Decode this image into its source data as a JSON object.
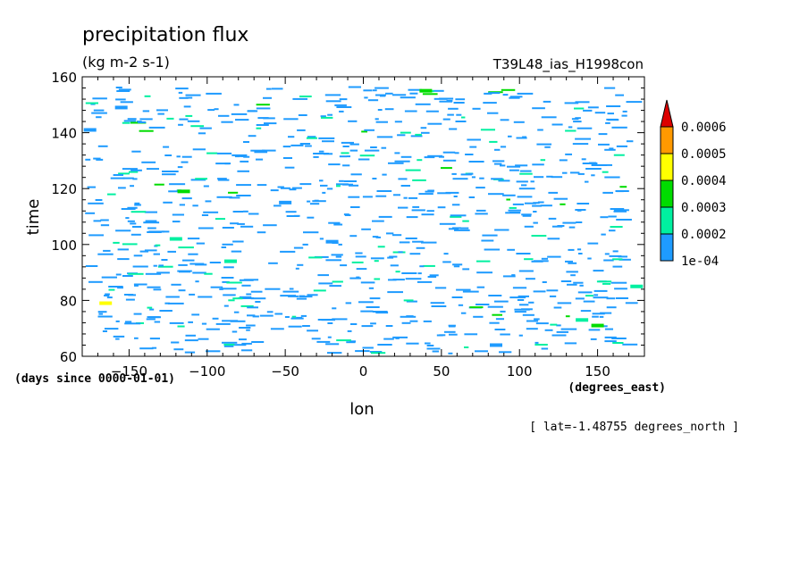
{
  "chart_data": {
    "type": "heatmap",
    "title": "precipitation flux",
    "units": "(kg m-2 s-1)",
    "run_name": "T39L48_ias_H1998con",
    "xlabel": "lon",
    "x_units": "(degrees_east)",
    "ylabel": "time",
    "y_units": "(days since 0000-01-01)",
    "xlim": [
      -180,
      180
    ],
    "ylim": [
      60,
      160
    ],
    "x_ticks": [
      -150,
      -100,
      -50,
      0,
      50,
      100,
      150
    ],
    "y_ticks": [
      60,
      80,
      100,
      120,
      140,
      160
    ],
    "x_tick_labels": [
      "−150",
      "−100",
      "−50",
      "0",
      "50",
      "100",
      "150"
    ],
    "y_tick_labels": [
      "60",
      "80",
      "100",
      "120",
      "140",
      "160"
    ],
    "footnote": "[ lat=-1.48755 degrees_north ]",
    "grid": false,
    "colorbar": {
      "placement": "right",
      "levels": [
        "1e-04",
        "0.0002",
        "0.0003",
        "0.0004",
        "0.0005",
        "0.0006"
      ],
      "colors": [
        "#1e9bff",
        "#00f0a0",
        "#00dc00",
        "#ffff00",
        "#ff9900",
        "#dd0000"
      ]
    },
    "cells_note_values": [
      {
        "lon": -175,
        "time": 141,
        "level": "1e-04"
      },
      {
        "lon": -155,
        "time": 149,
        "level": "1e-04"
      },
      {
        "lon": -120,
        "time": 102,
        "level": "0.0002"
      },
      {
        "lon": -115,
        "time": 119,
        "level": "0.0003"
      },
      {
        "lon": -85,
        "time": 94,
        "level": "0.0002"
      },
      {
        "lon": -50,
        "time": 115,
        "level": "1e-04"
      },
      {
        "lon": -20,
        "time": 101,
        "level": "1e-04"
      },
      {
        "lon": 40,
        "time": 155,
        "level": "0.0003"
      },
      {
        "lon": 85,
        "time": 64,
        "level": "1e-04"
      },
      {
        "lon": 140,
        "time": 73,
        "level": "0.0002"
      },
      {
        "lon": 150,
        "time": 71,
        "level": "0.0003"
      },
      {
        "lon": -165,
        "time": 79,
        "level": "0.0004"
      },
      {
        "lon": 175,
        "time": 85,
        "level": "0.0002"
      }
    ]
  }
}
